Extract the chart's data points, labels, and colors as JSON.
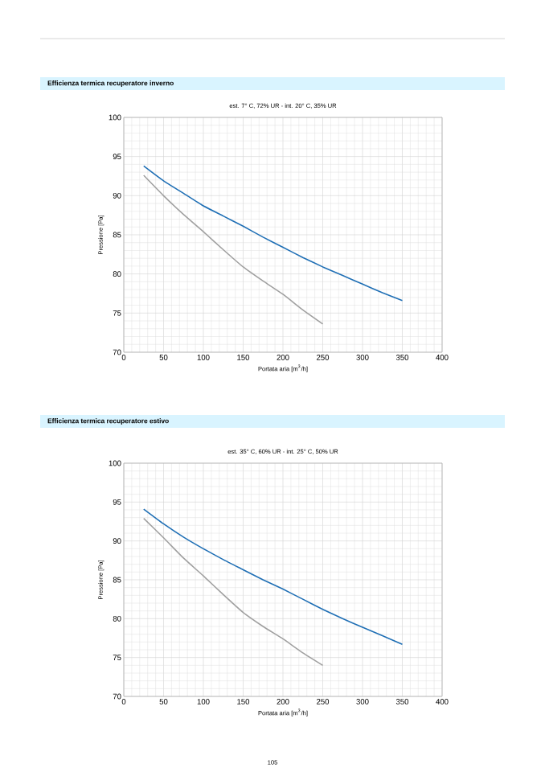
{
  "chart_data": [
    {
      "type": "line",
      "title": "Efficienza termica recuperatore inverno",
      "subtitle": "est. 7° C, 72% UR - int. 20° C, 35% UR",
      "xlabel": "Portata aria [m$^{3}$/h]",
      "ylabel": "Pressione [Pa]",
      "x": [
        25,
        50,
        75,
        100,
        125,
        150,
        175,
        200,
        225,
        250,
        275,
        300,
        325,
        350
      ],
      "series": [
        {
          "color": "#a0a0a0",
          "values": [
            92.6,
            90.0,
            87.6,
            85.4,
            83.1,
            80.9,
            79.1,
            77.4,
            75.4,
            73.6,
            null,
            null,
            null,
            null
          ]
        },
        {
          "color": "#1f6fb5",
          "values": [
            93.8,
            91.9,
            90.3,
            88.7,
            87.4,
            86.1,
            84.7,
            83.4,
            82.1,
            80.9,
            79.8,
            78.7,
            77.6,
            76.6
          ]
        }
      ],
      "xlim": [
        0,
        400
      ],
      "ylim": [
        70,
        100
      ],
      "xticks": [
        0,
        50,
        100,
        150,
        200,
        250,
        300,
        350,
        400
      ],
      "yticks": [
        70,
        75,
        80,
        85,
        90,
        95,
        100
      ],
      "grid": true,
      "marker": "none",
      "line_style": "solid"
    },
    {
      "type": "line",
      "title": "Efficienza termica recuperatore estivo",
      "subtitle": "est. 35° C, 60% UR - int. 25° C, 50% UR",
      "xlabel": "Portata aria [m$^{3}$/h]",
      "ylabel": "Pressione [Pa]",
      "x": [
        25,
        50,
        75,
        100,
        125,
        150,
        175,
        200,
        225,
        250,
        275,
        300,
        325,
        350
      ],
      "series": [
        {
          "color": "#a0a0a0",
          "values": [
            92.9,
            90.4,
            87.8,
            85.5,
            83.1,
            80.8,
            79.0,
            77.4,
            75.6,
            74.0,
            null,
            null,
            null,
            null
          ]
        },
        {
          "color": "#1f6fb5",
          "values": [
            94.1,
            92.2,
            90.5,
            89.0,
            87.6,
            86.3,
            85.0,
            83.8,
            82.5,
            81.2,
            80.0,
            78.9,
            77.8,
            76.7
          ]
        }
      ],
      "xlim": [
        0,
        400
      ],
      "ylim": [
        70,
        100
      ],
      "xticks": [
        0,
        50,
        100,
        150,
        200,
        250,
        300,
        350,
        400
      ],
      "yticks": [
        70,
        75,
        80,
        85,
        90,
        95,
        100
      ],
      "grid": true,
      "marker": "none",
      "line_style": "solid",
      "annotations": [
        "105"
      ]
    }
  ]
}
